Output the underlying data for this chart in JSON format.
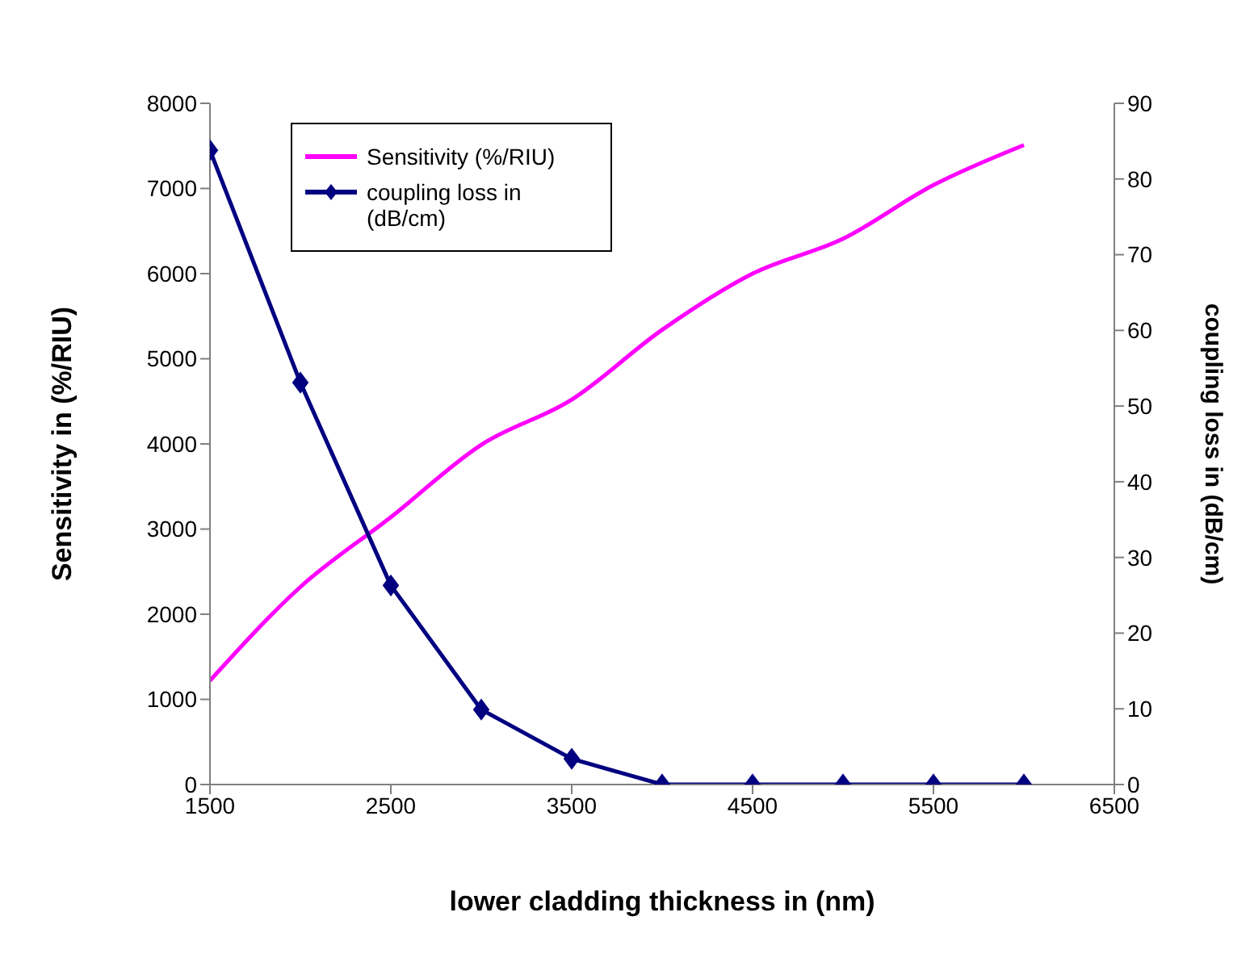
{
  "chart_data": {
    "type": "line",
    "xlabel": "lower cladding thickness in (nm)",
    "ylabel": "Sensitivity in  (%/RIU)",
    "y2label": "coupling loss  in (dB/cm)",
    "x": [
      1500,
      2000,
      2500,
      3000,
      3500,
      4000,
      4500,
      5000,
      5500,
      6000
    ],
    "series": [
      {
        "name": "Sensitivity (%/RIU)",
        "color": "#ff00ff",
        "marker": "none",
        "values": [
          1220,
          2320,
          3140,
          3990,
          4520,
          5340,
          6000,
          6410,
          7040,
          7510
        ]
      },
      {
        "name": "coupling loss in (dB/cm)",
        "color": "#000080",
        "marker": "diamond",
        "axis": "y2",
        "values": [
          83.8,
          53.1,
          26.3,
          9.9,
          3.4,
          0,
          0,
          0,
          0,
          0
        ]
      }
    ],
    "xlim": [
      1500,
      6500
    ],
    "xticks": [
      1500,
      2500,
      3500,
      4500,
      5500,
      6500
    ],
    "ylim": [
      0,
      8000
    ],
    "yticks": [
      0,
      1000,
      2000,
      3000,
      4000,
      5000,
      6000,
      7000,
      8000
    ],
    "y2lim": [
      0,
      90
    ],
    "y2ticks": [
      0,
      10,
      20,
      30,
      40,
      50,
      60,
      70,
      80,
      90
    ],
    "grid": false,
    "legend": "top left"
  }
}
